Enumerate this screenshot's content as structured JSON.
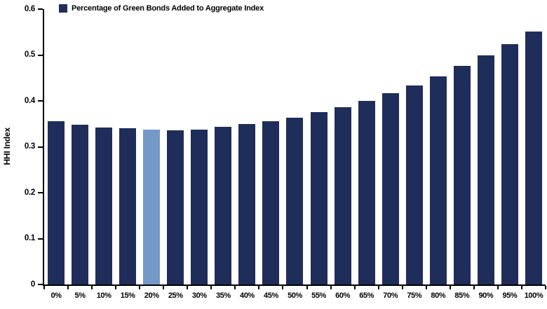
{
  "chart_data": {
    "type": "bar",
    "legend": "Percentage of Green Bonds Added to Aggregate Index",
    "legend_position": "top-left",
    "ylabel": "HHI Index",
    "xlabel": "",
    "categories": [
      "0%",
      "5%",
      "10%",
      "15%",
      "20%",
      "25%",
      "30%",
      "35%",
      "40%",
      "45%",
      "50%",
      "55%",
      "60%",
      "65%",
      "70%",
      "75%",
      "80%",
      "85%",
      "90%",
      "95%",
      "100%"
    ],
    "values": [
      0.355,
      0.348,
      0.342,
      0.34,
      0.338,
      0.336,
      0.337,
      0.343,
      0.349,
      0.355,
      0.364,
      0.375,
      0.386,
      0.4,
      0.417,
      0.434,
      0.454,
      0.476,
      0.499,
      0.524,
      0.551
    ],
    "ylim": [
      0,
      0.6
    ],
    "y_ticks": [
      {
        "label": "0.6",
        "value": 0.6
      },
      {
        "label": "0.5",
        "value": 0.5
      },
      {
        "label": "0.4",
        "value": 0.4
      },
      {
        "label": "0.3",
        "value": 0.3
      },
      {
        "label": "0.2",
        "value": 0.2
      },
      {
        "label": "0.1",
        "value": 0.1
      },
      {
        "label": "0",
        "value": 0
      }
    ],
    "grid": false,
    "bar_color": "#1F2D5A",
    "highlight_category": "20%",
    "highlight_color": "#7499C7",
    "axis_color": "#000000"
  }
}
